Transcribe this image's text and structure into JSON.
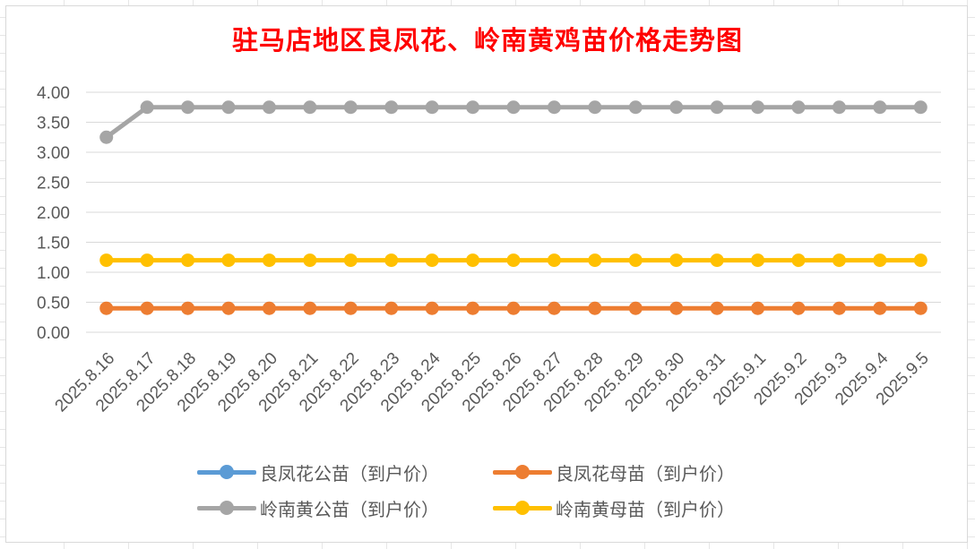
{
  "chart_data": {
    "type": "line",
    "title": "驻马店地区良凤花、岭南黄鸡苗价格走势图",
    "categories": [
      "2025.8.16",
      "2025.8.17",
      "2025.8.18",
      "2025.8.19",
      "2025.8.20",
      "2025.8.21",
      "2025.8.22",
      "2025.8.23",
      "2025.8.24",
      "2025.8.25",
      "2025.8.26",
      "2025.8.27",
      "2025.8.28",
      "2025.8.29",
      "2025.8.30",
      "2025.8.31",
      "2025.9.1",
      "2025.9.2",
      "2025.9.3",
      "2025.9.4",
      "2025.9.5"
    ],
    "series": [
      {
        "name": "良凤花公苗（到户价）",
        "color": "#5b9bd5",
        "values": [
          null,
          null,
          null,
          null,
          null,
          null,
          null,
          null,
          null,
          null,
          null,
          null,
          null,
          null,
          null,
          null,
          null,
          null,
          null,
          null,
          null
        ]
      },
      {
        "name": "良凤花母苗（到户价）",
        "color": "#ed7d31",
        "values": [
          0.4,
          0.4,
          0.4,
          0.4,
          0.4,
          0.4,
          0.4,
          0.4,
          0.4,
          0.4,
          0.4,
          0.4,
          0.4,
          0.4,
          0.4,
          0.4,
          0.4,
          0.4,
          0.4,
          0.4,
          0.4
        ]
      },
      {
        "name": "岭南黄公苗（到户价）",
        "color": "#a5a5a5",
        "values": [
          3.25,
          3.75,
          3.75,
          3.75,
          3.75,
          3.75,
          3.75,
          3.75,
          3.75,
          3.75,
          3.75,
          3.75,
          3.75,
          3.75,
          3.75,
          3.75,
          3.75,
          3.75,
          3.75,
          3.75,
          3.75
        ]
      },
      {
        "name": "岭南黄母苗（到户价）",
        "color": "#ffc000",
        "values": [
          1.2,
          1.2,
          1.2,
          1.2,
          1.2,
          1.2,
          1.2,
          1.2,
          1.2,
          1.2,
          1.2,
          1.2,
          1.2,
          1.2,
          1.2,
          1.2,
          1.2,
          1.2,
          1.2,
          1.2,
          1.2
        ]
      }
    ],
    "ylim": [
      0,
      4
    ],
    "yticks": [
      "0.00",
      "0.50",
      "1.00",
      "1.50",
      "2.00",
      "2.50",
      "3.00",
      "3.50",
      "4.00"
    ],
    "ytick_values": [
      0,
      0.5,
      1,
      1.5,
      2,
      2.5,
      3,
      3.5,
      4
    ],
    "grid": true,
    "legend_position": "bottom",
    "xlabel": "",
    "ylabel": ""
  }
}
